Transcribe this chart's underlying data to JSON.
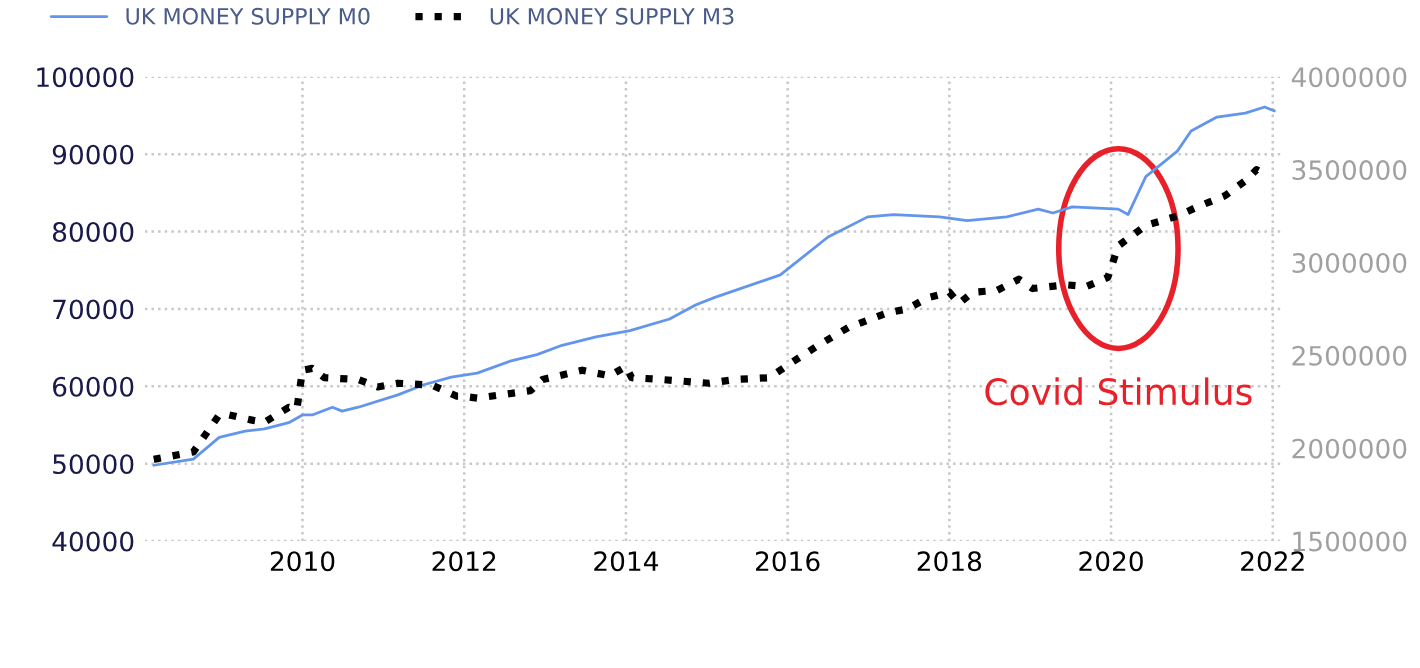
{
  "chart_data": {
    "type": "line",
    "annotations": [
      "Covid Stimulus"
    ],
    "series": [
      {
        "name": "UK MONEY SUPPLY M0",
        "color": "#6495ed",
        "line_style": "solid",
        "x": [
          2008.16,
          2008.65,
          2008.97,
          2009.29,
          2009.53,
          2009.83,
          2010.0,
          2010.12,
          2010.37,
          2010.49,
          2010.69,
          2011.18,
          2011.5,
          2011.84,
          2012.16,
          2012.58,
          2012.9,
          2013.21,
          2013.63,
          2014.05,
          2014.54,
          2014.86,
          2015.1,
          2015.91,
          2016.5,
          2016.99,
          2017.31,
          2017.88,
          2018.22,
          2018.71,
          2019.1,
          2019.28,
          2019.52,
          2020.09,
          2020.21,
          2020.43,
          2020.82,
          2020.99,
          2021.31,
          2021.66,
          2021.9,
          2022.02
        ],
        "values": [
          49800,
          50600,
          53400,
          54200,
          54500,
          55300,
          56300,
          56300,
          57300,
          56800,
          57300,
          58900,
          60200,
          61200,
          61700,
          63300,
          64100,
          65300,
          66400,
          67200,
          68700,
          70500,
          71500,
          74400,
          79300,
          81900,
          82200,
          81900,
          81400,
          81900,
          82900,
          82400,
          83200,
          82900,
          82200,
          87100,
          90400,
          93000,
          94800,
          95300,
          96100,
          95600
        ]
      },
      {
        "name": "UK MONEY SUPPLY M3",
        "color": "#000000",
        "line_style": "dotted",
        "axis": "y2",
        "x": [
          2008.16,
          2008.65,
          2008.97,
          2009.09,
          2009.39,
          2009.53,
          2009.83,
          2009.93,
          2010.0,
          2010.12,
          2010.27,
          2010.69,
          2010.93,
          2011.18,
          2011.6,
          2011.91,
          2011.99,
          2012.16,
          2012.82,
          2012.97,
          2013.46,
          2013.8,
          2014.0,
          2014.07,
          2014.44,
          2015.03,
          2015.35,
          2015.77,
          2016.01,
          2016.4,
          2016.75,
          2017.24,
          2017.48,
          2017.73,
          2018.0,
          2018.12,
          2018.29,
          2018.59,
          2018.86,
          2019.03,
          2019.45,
          2019.69,
          2019.96,
          2020.09,
          2020.43,
          2020.82,
          2021.07,
          2021.41,
          2021.66,
          2021.8,
          2021.93
        ],
        "values": [
          1940000,
          1980000,
          2180000,
          2180000,
          2150000,
          2140000,
          2220000,
          2210000,
          2420000,
          2430000,
          2380000,
          2370000,
          2330000,
          2350000,
          2340000,
          2280000,
          2280000,
          2270000,
          2310000,
          2370000,
          2420000,
          2390000,
          2440000,
          2380000,
          2370000,
          2350000,
          2370000,
          2380000,
          2450000,
          2560000,
          2650000,
          2730000,
          2750000,
          2810000,
          2840000,
          2780000,
          2840000,
          2850000,
          2910000,
          2860000,
          2880000,
          2870000,
          2920000,
          3090000,
          3200000,
          3250000,
          3300000,
          3360000,
          3440000,
          3500000,
          3470000
        ]
      }
    ],
    "xlim": [
      2008.05,
      2022.1
    ],
    "xticks": [
      2010,
      2012,
      2014,
      2016,
      2018,
      2020,
      2022
    ],
    "ylim": [
      40000,
      100000
    ],
    "yticks": [
      40000,
      50000,
      60000,
      70000,
      80000,
      90000,
      100000
    ],
    "y2lim": [
      1500000,
      4000000
    ],
    "y2ticks": [
      1500000,
      2000000,
      2500000,
      3000000,
      3500000,
      4000000
    ],
    "grid": true,
    "legend": "top left"
  }
}
